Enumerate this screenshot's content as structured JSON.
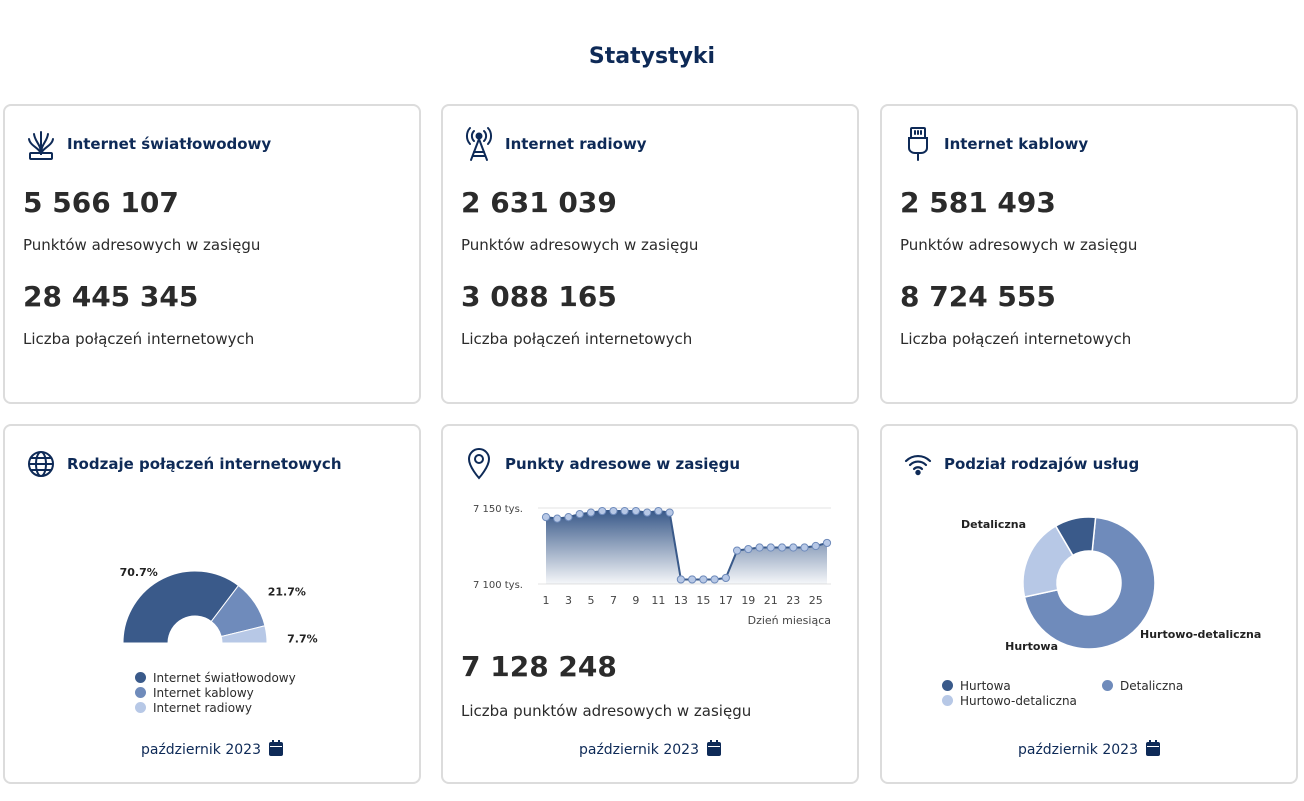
{
  "page": {
    "title": "Statystyki"
  },
  "cards": {
    "fiber": {
      "title": "Internet światłowodowy",
      "address_points": "5 566 107",
      "address_points_label": "Punktów adresowych w zasięgu",
      "connections": "28 445 345",
      "connections_label": "Liczba połączeń internetowych",
      "icon": "fiber-optic-icon"
    },
    "radio": {
      "title": "Internet radiowy",
      "address_points": "2 631 039",
      "address_points_label": "Punktów adresowych w zasięgu",
      "connections": "3 088 165",
      "connections_label": "Liczba połączeń internetowych",
      "icon": "radio-tower-icon"
    },
    "cable": {
      "title": "Internet kablowy",
      "address_points": "2 581 493",
      "address_points_label": "Punktów adresowych w zasięgu",
      "connections": "8 724 555",
      "connections_label": "Liczba połączeń internetowych",
      "icon": "ethernet-plug-icon"
    },
    "connection_types": {
      "title": "Rodzaje połączeń internetowych",
      "period": "październik 2023",
      "icon": "globe-icon"
    },
    "address_points": {
      "title": "Punkty adresowe w zasięgu",
      "total": "7 128 248",
      "total_label": "Liczba punktów adresowych w zasięgu",
      "period": "październik 2023",
      "icon": "location-pin-icon"
    },
    "services": {
      "title": "Podział rodzajów usług",
      "period": "październik 2023",
      "icon": "wifi-icon"
    }
  },
  "colors": {
    "dark": "#3a5a8a",
    "mid": "#6f8bbb",
    "light": "#b7c8e6",
    "title": "#0e2a57"
  },
  "chart_data": [
    {
      "type": "pie",
      "variant": "semi-donut",
      "labels": [
        "Internet światłowodowy",
        "Internet kablowy",
        "Internet radiowy"
      ],
      "values": [
        70.7,
        21.7,
        7.7
      ],
      "value_labels": [
        "70.7%",
        "21.7%",
        "7.7%"
      ],
      "colors": [
        "#3a5a8a",
        "#6f8bbb",
        "#b7c8e6"
      ],
      "legend": "bottom"
    },
    {
      "type": "area",
      "x": [
        1,
        2,
        3,
        4,
        5,
        6,
        7,
        8,
        9,
        10,
        11,
        12,
        13,
        14,
        15,
        16,
        17,
        18,
        19,
        20,
        21,
        22,
        23,
        24,
        25,
        26
      ],
      "values": [
        7144,
        7143,
        7144,
        7146,
        7147,
        7148,
        7148,
        7148,
        7148,
        7147,
        7148,
        7147,
        7103,
        7103,
        7103,
        7103,
        7104,
        7122,
        7123,
        7124,
        7124,
        7124,
        7124,
        7124,
        7125,
        7127
      ],
      "y_ticks": [
        "7 100 tys.",
        "7 150 tys."
      ],
      "y_tick_values": [
        7100,
        7150
      ],
      "x_ticks": [
        "1",
        "3",
        "5",
        "7",
        "9",
        "11",
        "13",
        "15",
        "17",
        "19",
        "21",
        "23",
        "25"
      ],
      "x_tick_values": [
        1,
        3,
        5,
        7,
        9,
        11,
        13,
        15,
        17,
        19,
        21,
        23,
        25
      ],
      "xlabel": "Dzień miesiąca",
      "ylim": [
        7100,
        7150
      ],
      "xlim": [
        1,
        26
      ],
      "grid": true
    },
    {
      "type": "pie",
      "variant": "donut",
      "labels": [
        "Detaliczna",
        "Hurtowo-detaliczna",
        "Hurtowa"
      ],
      "values": [
        70,
        20,
        10
      ],
      "colors": [
        "#6f8bbb",
        "#b7c8e6",
        "#3a5a8a"
      ],
      "legend_labels": [
        "Hurtowa",
        "Detaliczna",
        "Hurtowo-detaliczna"
      ],
      "legend_colors": [
        "#3a5a8a",
        "#6f8bbb",
        "#b7c8e6"
      ],
      "legend": "bottom"
    }
  ]
}
